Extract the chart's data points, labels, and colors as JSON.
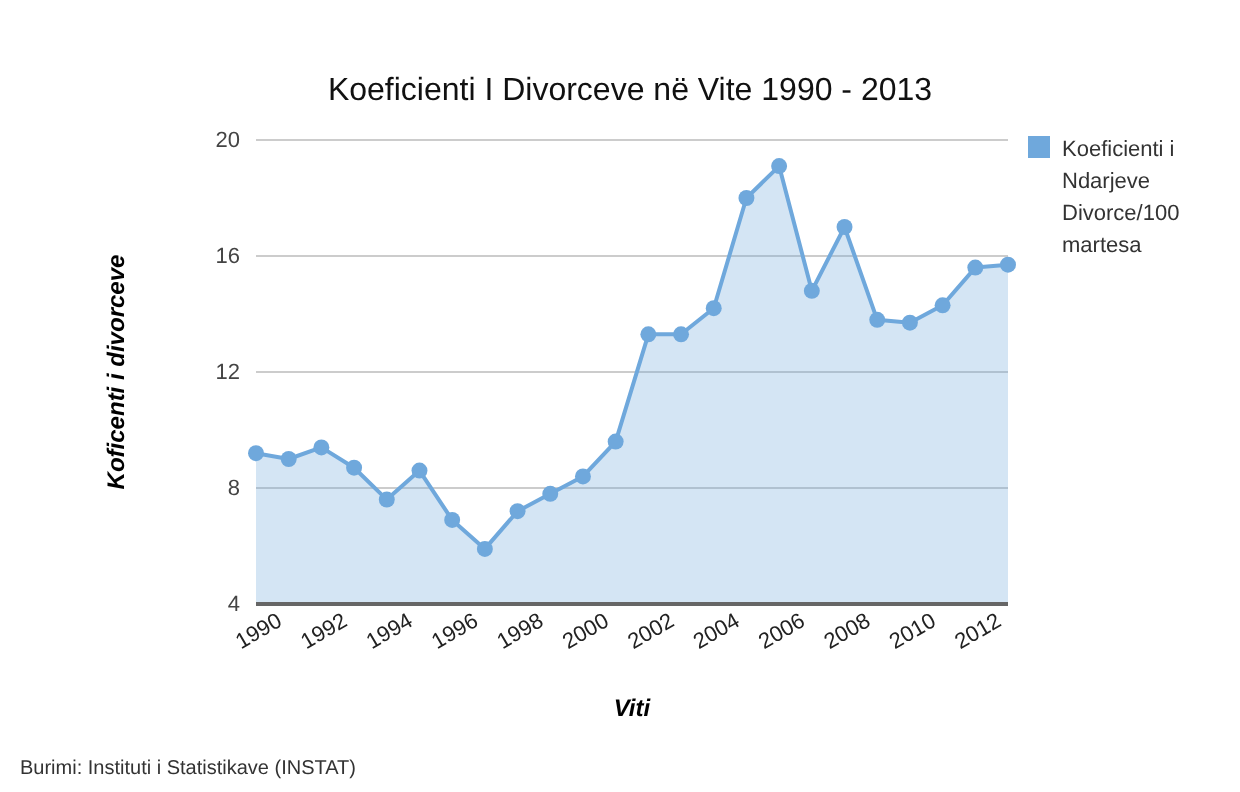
{
  "chart_data": {
    "type": "area",
    "title": "Koeficienti I Divorceve në Vite 1990 - 2013",
    "xlabel": "Viti",
    "ylabel": "Koficenti i divorceve",
    "categories": [
      "1990",
      null,
      "1992",
      null,
      "1994",
      null,
      "1996",
      null,
      "1998",
      null,
      "2000",
      null,
      "2002",
      null,
      "2004",
      null,
      "2006",
      null,
      "2008",
      null,
      "2010",
      null,
      "2012",
      null
    ],
    "series": [
      {
        "name": "Koeficienti i Ndarjeve Divorce/100 martesa",
        "color": "#6fa8dc",
        "values": [
          9.2,
          9.0,
          9.4,
          8.7,
          7.6,
          8.6,
          6.9,
          5.9,
          7.2,
          7.8,
          8.4,
          9.6,
          13.3,
          13.3,
          14.2,
          18.0,
          19.1,
          14.8,
          17.0,
          13.8,
          13.7,
          14.3,
          15.6,
          15.7
        ]
      }
    ],
    "ylim": [
      4,
      20
    ],
    "yticks": [
      4,
      8,
      12,
      16,
      20
    ],
    "grid": "y",
    "legend": "right",
    "marker": "circle",
    "annotations": [
      "Burimi: Instituti i Statistikave (INSTAT)"
    ]
  }
}
